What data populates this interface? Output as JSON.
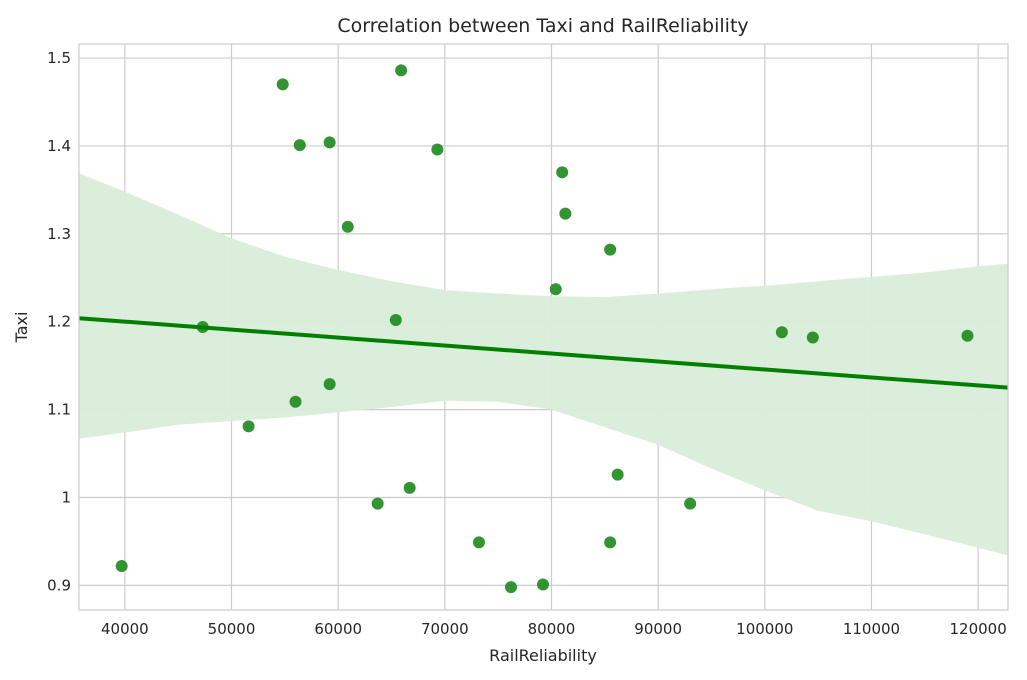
{
  "chart_data": {
    "type": "scatter",
    "title": "Correlation between Taxi and RailReliability",
    "xlabel": "RailReliability",
    "ylabel": "Taxi",
    "xlim": [
      35700,
      122800
    ],
    "ylim": [
      0.872,
      1.516
    ],
    "xticks": [
      40000,
      50000,
      60000,
      70000,
      80000,
      90000,
      100000,
      110000,
      120000
    ],
    "xtick_labels": [
      "40000",
      "50000",
      "60000",
      "70000",
      "80000",
      "90000",
      "100000",
      "110000",
      "120000"
    ],
    "yticks": [
      0.9,
      1.0,
      1.1,
      1.2,
      1.3,
      1.4,
      1.5
    ],
    "ytick_labels": [
      "0.9",
      "1",
      "1.1",
      "1.2",
      "1.3",
      "1.4",
      "1.5"
    ],
    "grid": true,
    "colors": {
      "points": "#228B22",
      "line": "#008000",
      "band": "#d9ecd9",
      "grid": "#cccccc",
      "frame": "#cccccc"
    },
    "points": [
      {
        "x": 39700,
        "y": 0.922
      },
      {
        "x": 47300,
        "y": 1.194
      },
      {
        "x": 51600,
        "y": 1.081
      },
      {
        "x": 54800,
        "y": 1.47
      },
      {
        "x": 56000,
        "y": 1.109
      },
      {
        "x": 56400,
        "y": 1.401
      },
      {
        "x": 59200,
        "y": 1.404
      },
      {
        "x": 59200,
        "y": 1.129
      },
      {
        "x": 60900,
        "y": 1.308
      },
      {
        "x": 63700,
        "y": 0.993
      },
      {
        "x": 65400,
        "y": 1.202
      },
      {
        "x": 65900,
        "y": 1.486
      },
      {
        "x": 66700,
        "y": 1.011
      },
      {
        "x": 69300,
        "y": 1.396
      },
      {
        "x": 73200,
        "y": 0.949
      },
      {
        "x": 76200,
        "y": 0.898
      },
      {
        "x": 79200,
        "y": 0.901
      },
      {
        "x": 80400,
        "y": 1.237
      },
      {
        "x": 81000,
        "y": 1.37
      },
      {
        "x": 81300,
        "y": 1.323
      },
      {
        "x": 85500,
        "y": 1.282
      },
      {
        "x": 85500,
        "y": 0.949
      },
      {
        "x": 86200,
        "y": 1.026
      },
      {
        "x": 93000,
        "y": 0.993
      },
      {
        "x": 101600,
        "y": 1.188
      },
      {
        "x": 104500,
        "y": 1.182
      },
      {
        "x": 119000,
        "y": 1.184
      }
    ],
    "regression": {
      "x": [
        35700,
        122800
      ],
      "y": [
        1.204,
        1.125
      ]
    },
    "confidence_band": {
      "x": [
        35700,
        40000,
        45000,
        50000,
        55000,
        60000,
        65000,
        70000,
        75000,
        80000,
        85000,
        90000,
        95000,
        100000,
        105000,
        110000,
        115000,
        120000,
        122800
      ],
      "upper": [
        1.369,
        1.348,
        1.322,
        1.295,
        1.274,
        1.259,
        1.246,
        1.236,
        1.232,
        1.229,
        1.228,
        1.232,
        1.237,
        1.241,
        1.246,
        1.251,
        1.256,
        1.263,
        1.266
      ],
      "lower": [
        1.067,
        1.074,
        1.083,
        1.087,
        1.091,
        1.097,
        1.103,
        1.11,
        1.109,
        1.1,
        1.08,
        1.06,
        1.033,
        1.008,
        0.985,
        0.973,
        0.958,
        0.943,
        0.934
      ]
    }
  }
}
